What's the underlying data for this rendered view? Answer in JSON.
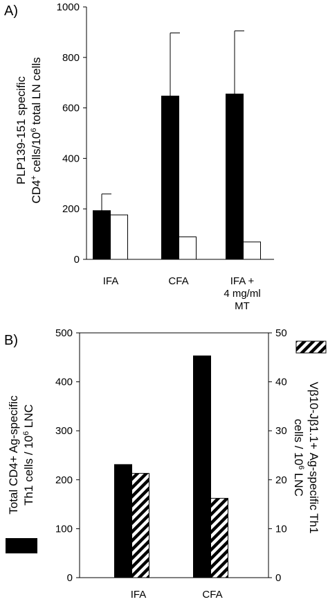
{
  "chart_data": [
    {
      "type": "bar",
      "panel_label": "A)",
      "categories": [
        "IFA",
        "CFA",
        "IFA + 4 mg/ml MT"
      ],
      "category_lines": [
        [
          "IFA"
        ],
        [
          "CFA"
        ],
        [
          "IFA +",
          "4 mg/ml",
          "MT"
        ]
      ],
      "ylabel_lines": [
        "PLP139-151 specific",
        "CD4+ cells/106 total LN cells"
      ],
      "ylim": [
        0,
        1000
      ],
      "yticks": [
        "0",
        "200",
        "400",
        "600",
        "800",
        "1000"
      ],
      "series": [
        {
          "fill": "#000000",
          "values": [
            193,
            647,
            655
          ],
          "error_upper": [
            259,
            897,
            905
          ]
        },
        {
          "fill": "#ffffff",
          "values": [
            176,
            89,
            69
          ]
        }
      ],
      "grid": false
    },
    {
      "type": "bar",
      "panel_label": "B)",
      "categories": [
        "IFA",
        "CFA"
      ],
      "ylabel_left_lines": [
        "Total CD4+ Ag-specific",
        "Th1 cells / 106 LNC"
      ],
      "ylabel_right_lines": [
        "Vβ10-Jβ1.1+ Ag-specific Th1",
        "cells / 106 LNC"
      ],
      "ylim_left": [
        0,
        500
      ],
      "yticks_left": [
        "0",
        "100",
        "200",
        "300",
        "400",
        "500"
      ],
      "ylim_right": [
        0,
        50
      ],
      "yticks_right": [
        "0",
        "10",
        "20",
        "30",
        "40",
        "50"
      ],
      "series": [
        {
          "axis": "left",
          "fill": "#000000",
          "values": [
            231,
            453
          ]
        },
        {
          "axis": "right",
          "fill": "hatch",
          "values": [
            21.3,
            16.2
          ]
        }
      ],
      "grid": false
    }
  ]
}
